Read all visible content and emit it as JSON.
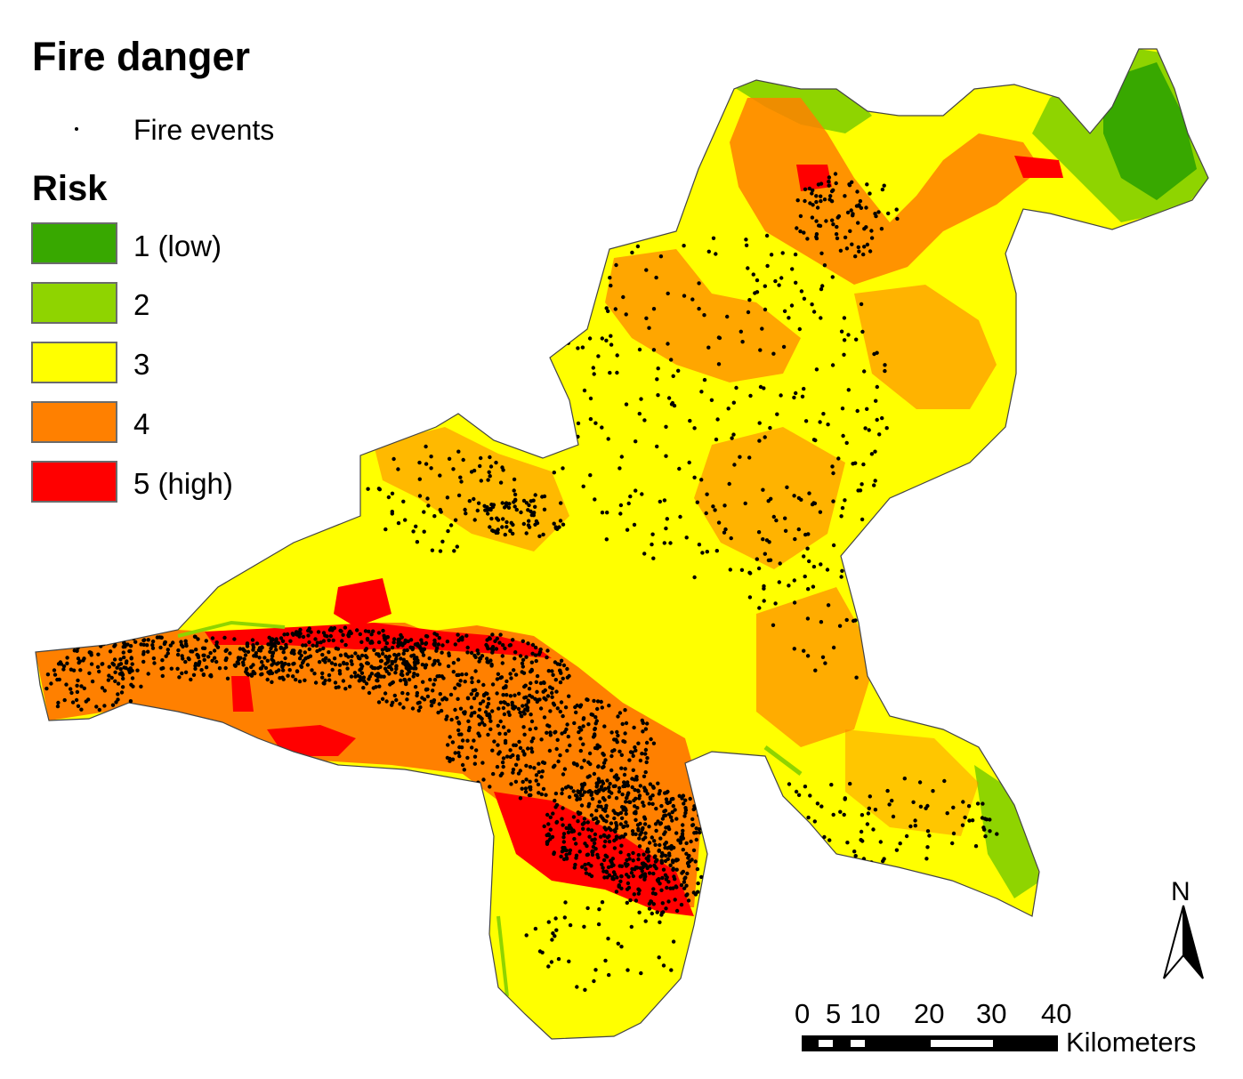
{
  "title": "Fire danger",
  "fire_events_label": "Fire events",
  "risk_title": "Risk",
  "risk_classes": [
    {
      "label": "1 (low)",
      "color": "#38a800"
    },
    {
      "label": "2",
      "color": "#8fd400"
    },
    {
      "label": "3",
      "color": "#ffff00"
    },
    {
      "label": "4",
      "color": "#ff8000"
    },
    {
      "label": "5 (high)",
      "color": "#ff0000"
    }
  ],
  "north_label": "N",
  "scale": {
    "ticks": [
      "0",
      "5",
      "10",
      "20",
      "30",
      "40"
    ],
    "unit": "Kilometers"
  }
}
